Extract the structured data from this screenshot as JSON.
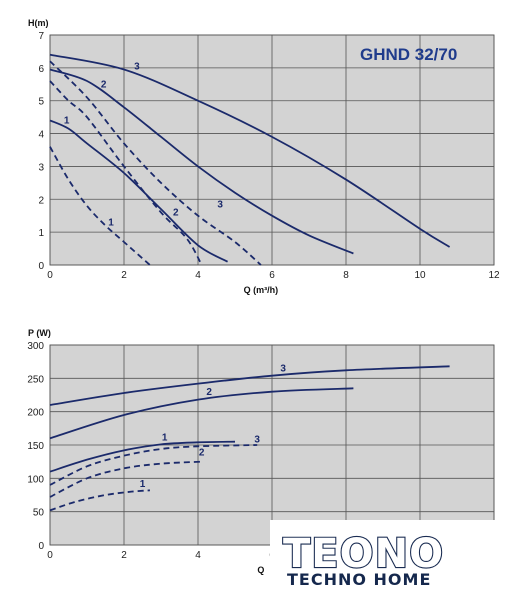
{
  "title": "GHND 32/70",
  "logo": {
    "main": "TEONO",
    "sub": "TECHNO HOME"
  },
  "chart_data": [
    {
      "type": "line",
      "ylabel": "H(m)",
      "xlabel": "Q (m³/h)",
      "xlim": [
        0,
        12
      ],
      "ylim": [
        0,
        7
      ],
      "xticks": [
        0,
        2,
        4,
        6,
        8,
        10,
        12
      ],
      "yticks": [
        0,
        1,
        2,
        3,
        4,
        5,
        6,
        7
      ],
      "grid": true,
      "series": [
        {
          "name": "3",
          "style": "solid",
          "label_at": [
            2.35,
            5.95
          ],
          "points": [
            [
              0,
              6.4
            ],
            [
              2,
              5.95
            ],
            [
              4,
              5.0
            ],
            [
              6,
              3.9
            ],
            [
              8,
              2.6
            ],
            [
              10,
              1.1
            ],
            [
              10.8,
              0.55
            ]
          ]
        },
        {
          "name": "2",
          "style": "solid",
          "label_at": [
            1.45,
            5.4
          ],
          "points": [
            [
              0,
              5.95
            ],
            [
              1,
              5.6
            ],
            [
              2,
              4.8
            ],
            [
              3,
              3.9
            ],
            [
              4,
              3.0
            ],
            [
              5,
              2.2
            ],
            [
              6,
              1.5
            ],
            [
              7,
              0.9
            ],
            [
              8.2,
              0.35
            ]
          ]
        },
        {
          "name": "1",
          "style": "solid",
          "label_at": [
            0.45,
            4.3
          ],
          "points": [
            [
              0,
              4.4
            ],
            [
              0.5,
              4.15
            ],
            [
              1,
              3.7
            ],
            [
              2,
              2.8
            ],
            [
              3,
              1.7
            ],
            [
              4,
              0.6
            ],
            [
              4.8,
              0.1
            ]
          ]
        },
        {
          "name": "3",
          "style": "dashed",
          "label_at": [
            4.6,
            1.75
          ],
          "points": [
            [
              0,
              6.2
            ],
            [
              1,
              5.1
            ],
            [
              2,
              3.7
            ],
            [
              3,
              2.5
            ],
            [
              4,
              1.5
            ],
            [
              5,
              0.7
            ],
            [
              5.7,
              0
            ]
          ]
        },
        {
          "name": "2",
          "style": "dashed",
          "label_at": [
            3.4,
            1.5
          ],
          "points": [
            [
              0,
              5.6
            ],
            [
              0.5,
              5.0
            ],
            [
              1,
              4.5
            ],
            [
              2,
              3.0
            ],
            [
              3,
              1.6
            ],
            [
              3.7,
              0.8
            ],
            [
              4.1,
              0
            ]
          ]
        },
        {
          "name": "1",
          "style": "dashed",
          "label_at": [
            1.65,
            1.2
          ],
          "points": [
            [
              0,
              3.6
            ],
            [
              0.5,
              2.6
            ],
            [
              1,
              1.8
            ],
            [
              1.5,
              1.2
            ],
            [
              2,
              0.7
            ],
            [
              2.7,
              0
            ]
          ]
        }
      ]
    },
    {
      "type": "line",
      "ylabel": "P (W)",
      "xlabel": "Q",
      "xlim": [
        0,
        12
      ],
      "ylim": [
        0,
        300
      ],
      "xticks": [
        0,
        2,
        4,
        6
      ],
      "yticks": [
        0,
        50,
        100,
        150,
        200,
        250,
        300
      ],
      "grid": true,
      "series": [
        {
          "name": "3",
          "style": "solid",
          "label_at": [
            6.3,
            260
          ],
          "points": [
            [
              0,
              210
            ],
            [
              2,
              228
            ],
            [
              4,
              242
            ],
            [
              6,
              254
            ],
            [
              8,
              262
            ],
            [
              10.8,
              268
            ]
          ]
        },
        {
          "name": "2",
          "style": "solid",
          "label_at": [
            4.3,
            225
          ],
          "points": [
            [
              0,
              160
            ],
            [
              2,
              195
            ],
            [
              4,
              218
            ],
            [
              6,
              230
            ],
            [
              8.2,
              235
            ]
          ]
        },
        {
          "name": "1",
          "style": "solid",
          "label_at": [
            3.1,
            157
          ],
          "points": [
            [
              0,
              110
            ],
            [
              1,
              128
            ],
            [
              2,
              142
            ],
            [
              3,
              151
            ],
            [
              4,
              154
            ],
            [
              5,
              155
            ]
          ]
        },
        {
          "name": "3",
          "style": "dashed",
          "label_at": [
            5.6,
            154
          ],
          "points": [
            [
              0,
              90
            ],
            [
              1,
              118
            ],
            [
              2,
              134
            ],
            [
              3,
              144
            ],
            [
              4,
              148
            ],
            [
              5.6,
              150
            ]
          ]
        },
        {
          "name": "2",
          "style": "dashed",
          "label_at": [
            4.1,
            134
          ],
          "points": [
            [
              0,
              72
            ],
            [
              1,
              100
            ],
            [
              2,
              115
            ],
            [
              3,
              122
            ],
            [
              4.1,
              125
            ]
          ]
        },
        {
          "name": "1",
          "style": "dashed",
          "label_at": [
            2.5,
            87
          ],
          "points": [
            [
              0,
              52
            ],
            [
              0.7,
              65
            ],
            [
              1.5,
              75
            ],
            [
              2.2,
              80
            ],
            [
              2.7,
              82
            ]
          ]
        }
      ]
    }
  ]
}
